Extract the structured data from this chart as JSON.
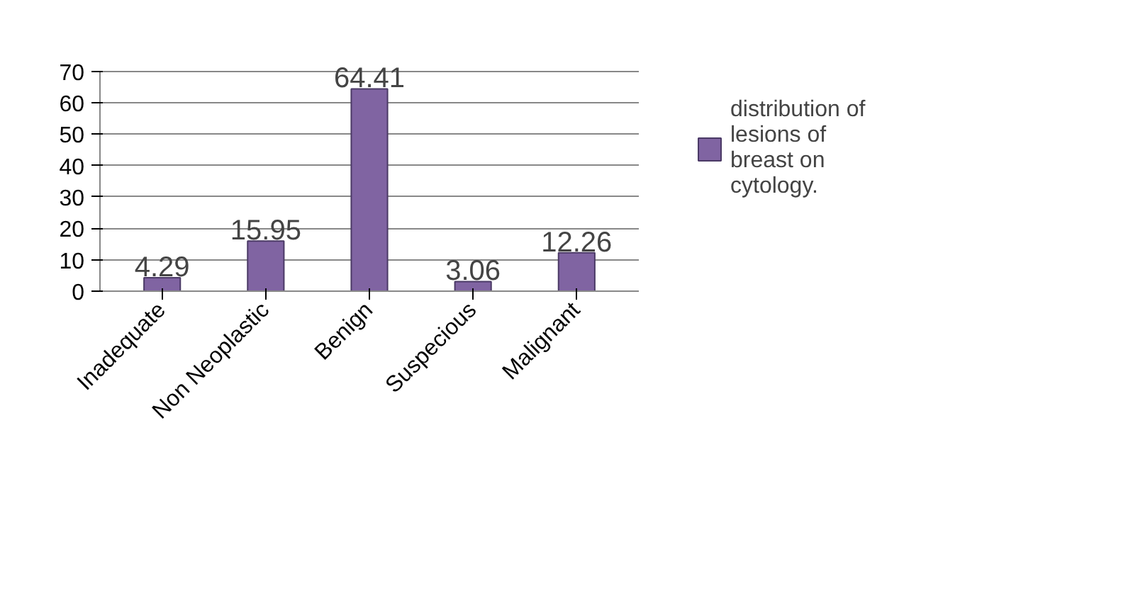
{
  "chart_data": {
    "type": "bar",
    "categories": [
      "Inadequate",
      "Non Neoplastic",
      "Benign",
      "Suspecious",
      "Malignant"
    ],
    "series": [
      {
        "name": "distribution of lesions of breast on cytology.",
        "color": "#8064a2",
        "values": [
          4.29,
          15.95,
          64.41,
          3.06,
          12.26
        ]
      }
    ],
    "ylim": [
      0,
      70
    ],
    "yticks": [
      0,
      10,
      20,
      30,
      40,
      50,
      60,
      70
    ],
    "grid": "y",
    "legend": "right",
    "data_labels": true
  }
}
